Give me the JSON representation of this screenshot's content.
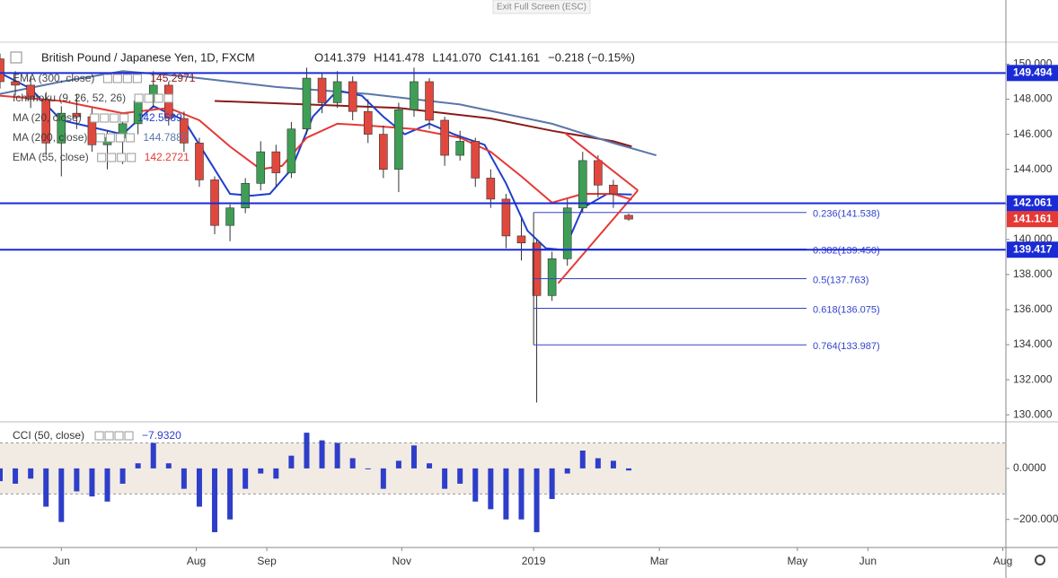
{
  "ui": {
    "exit_button": "Exit Full Screen (ESC)"
  },
  "chart_data": [
    {
      "type": "candlestick",
      "title": "British Pound / Japanese Yen, 1D, FXCM",
      "readout": [
        "O141.379",
        "H141.478",
        "L141.070",
        "C141.161",
        "−0.218 (−0.15%)"
      ],
      "x": [
        0,
        5,
        10,
        15,
        20,
        25,
        30,
        35,
        40,
        45,
        50,
        55,
        60,
        65,
        70,
        75,
        80,
        85,
        90,
        95,
        100,
        105,
        110,
        115,
        120,
        125,
        130,
        135,
        140,
        145,
        150,
        155,
        160,
        165,
        170,
        175,
        180,
        185,
        190,
        195,
        200,
        205
      ],
      "open": [
        150.3,
        149.0,
        148.8,
        148.0,
        145.5,
        147.2,
        147.0,
        145.4,
        145.8,
        146.6,
        147.9,
        148.8,
        146.9,
        145.5,
        143.4,
        140.8,
        141.8,
        143.2,
        145.0,
        143.8,
        146.3,
        149.2,
        147.8,
        149.0,
        147.3,
        146.0,
        144.0,
        147.4,
        149.0,
        146.8,
        144.8,
        145.6,
        143.5,
        142.3,
        140.2,
        139.8,
        136.8,
        138.9,
        141.8,
        144.5,
        143.1,
        141.379
      ],
      "high": [
        150.6,
        149.6,
        149.3,
        148.4,
        147.6,
        148.3,
        147.5,
        146.2,
        147.0,
        148.3,
        149.6,
        149.0,
        147.3,
        145.8,
        143.6,
        142.0,
        143.5,
        145.6,
        145.4,
        146.7,
        149.8,
        149.5,
        149.6,
        149.3,
        148.0,
        146.5,
        147.8,
        149.8,
        149.2,
        147.0,
        146.2,
        145.8,
        144.0,
        142.6,
        141.2,
        140.0,
        139.3,
        142.3,
        145.0,
        144.8,
        143.4,
        141.478
      ],
      "low": [
        148.6,
        148.2,
        147.5,
        144.8,
        143.6,
        146.3,
        145.0,
        144.0,
        144.3,
        146.0,
        147.5,
        146.5,
        145.0,
        143.0,
        140.3,
        139.9,
        141.5,
        142.8,
        143.0,
        143.5,
        146.0,
        147.2,
        147.5,
        146.8,
        145.5,
        143.5,
        142.7,
        147.0,
        146.3,
        144.2,
        144.5,
        143.0,
        141.8,
        139.5,
        138.8,
        130.7,
        136.5,
        138.5,
        141.5,
        142.4,
        141.8,
        141.07
      ],
      "close": [
        149.0,
        148.8,
        148.0,
        145.5,
        147.2,
        147.0,
        145.4,
        145.8,
        146.6,
        147.9,
        148.8,
        146.9,
        145.5,
        143.4,
        140.8,
        141.8,
        143.2,
        145.0,
        143.8,
        146.3,
        149.2,
        147.8,
        149.0,
        147.3,
        146.0,
        144.0,
        147.4,
        149.0,
        146.8,
        144.8,
        145.6,
        143.5,
        142.3,
        140.2,
        139.8,
        136.8,
        138.9,
        141.8,
        144.5,
        143.1,
        142.6,
        141.161
      ],
      "up_color": "#3f9e55",
      "down_color": "#e0483e",
      "xlim": [
        0,
        328
      ],
      "xticks": [
        {
          "value": 20,
          "label": "Jun"
        },
        {
          "value": 64,
          "label": "Aug"
        },
        {
          "value": 87,
          "label": "Sep"
        },
        {
          "value": 131,
          "label": "Nov"
        },
        {
          "value": 174,
          "label": "2019"
        },
        {
          "value": 215,
          "label": "Mar"
        },
        {
          "value": 260,
          "label": "May"
        },
        {
          "value": 283,
          "label": "Jun"
        },
        {
          "value": 327,
          "label": "Aug"
        }
      ],
      "ylim": [
        129.6,
        151.2
      ],
      "yticks": [
        {
          "value": 130,
          "label": "130.000"
        },
        {
          "value": 132,
          "label": "132.000"
        },
        {
          "value": 134,
          "label": "134.000"
        },
        {
          "value": 136,
          "label": "136.000"
        },
        {
          "value": 138,
          "label": "138.000"
        },
        {
          "value": 140,
          "label": "140.000"
        },
        {
          "value": 142,
          "label": "142.000"
        },
        {
          "value": 144,
          "label": "144.000"
        },
        {
          "value": 146,
          "label": "146.000"
        },
        {
          "value": 148,
          "label": "148.000"
        },
        {
          "value": 150,
          "label": "150.000"
        }
      ],
      "lines": [
        {
          "name": "EMA (300, close)",
          "value_label": "145.2971",
          "color": "#8b1a1a",
          "x": [
            70,
            100,
            130,
            160,
            180,
            200,
            206
          ],
          "values": [
            147.9,
            147.7,
            147.5,
            146.9,
            146.2,
            145.6,
            145.3
          ]
        },
        {
          "name": "Ichimoku (9, 26, 52, 26)",
          "color": "#5a76a8",
          "x": [
            0,
            20,
            40,
            60,
            90,
            120,
            150,
            180,
            200,
            214
          ],
          "values": [
            148.3,
            149.0,
            149.6,
            149.3,
            148.7,
            148.3,
            147.7,
            146.6,
            145.5,
            144.8
          ]
        },
        {
          "name": "MA (20, close)",
          "value_label": "142.5589",
          "color": "#1e3fcc",
          "x": [
            0,
            10,
            20,
            30,
            40,
            50,
            60,
            70,
            75,
            82,
            88,
            95,
            102,
            110,
            118,
            125,
            132,
            140,
            148,
            158,
            165,
            172,
            178,
            184,
            190,
            198,
            206
          ],
          "values": [
            149.5,
            148.6,
            146.8,
            146.4,
            146.0,
            147.6,
            146.8,
            144.0,
            142.6,
            142.5,
            142.6,
            144.0,
            147.0,
            148.5,
            148.2,
            147.0,
            146.0,
            146.6,
            146.0,
            145.4,
            143.2,
            140.5,
            139.5,
            139.4,
            141.8,
            142.6,
            142.56
          ]
        },
        {
          "name": "MA (200, close)",
          "value_label": "144.7887",
          "color": "#5a76a8"
        },
        {
          "name": "EMA (55, close)",
          "value_label": "142.2721",
          "color": "#e53935",
          "x": [
            0,
            20,
            40,
            55,
            65,
            75,
            85,
            92,
            100,
            110,
            120,
            135,
            150,
            160,
            170,
            180,
            190,
            200,
            206
          ],
          "values": [
            148.2,
            147.9,
            147.2,
            147.5,
            146.8,
            145.3,
            144.0,
            144.2,
            145.8,
            146.6,
            146.5,
            146.3,
            145.8,
            145.0,
            143.6,
            142.1,
            142.6,
            142.6,
            142.27
          ]
        }
      ],
      "levels": [
        {
          "value": 149.494,
          "label": "149.494"
        },
        {
          "value": 142.061,
          "label": "142.061"
        },
        {
          "value": 139.417,
          "label": "139.417"
        }
      ],
      "level_color": "#1a2bd6",
      "price_label": {
        "value": 141.161,
        "label": "141.161",
        "color": "#e53935"
      },
      "fib_x": [
        174,
        263
      ],
      "fib_levels": [
        {
          "value": 141.538,
          "label": "0.236(141.538)"
        },
        {
          "value": 139.45,
          "label": "0.382(139.450)"
        },
        {
          "value": 137.763,
          "label": "0.5(137.763)"
        },
        {
          "value": 136.075,
          "label": "0.618(136.075)"
        },
        {
          "value": 133.987,
          "label": "0.764(133.987)"
        }
      ],
      "trendlines": [
        {
          "x": [
            184,
            208
          ],
          "y": [
            146.1,
            142.8
          ]
        },
        {
          "x": [
            182,
            208
          ],
          "y": [
            137.5,
            142.8
          ]
        }
      ],
      "trend_color": "#e53935"
    },
    {
      "type": "bar",
      "title": "CCI (50, close)",
      "value_label": "−7.9320",
      "x": [
        0,
        5,
        10,
        15,
        20,
        25,
        30,
        35,
        40,
        45,
        50,
        55,
        60,
        65,
        70,
        75,
        80,
        85,
        90,
        95,
        100,
        105,
        110,
        115,
        120,
        125,
        130,
        135,
        140,
        145,
        150,
        155,
        160,
        165,
        170,
        175,
        180,
        185,
        190,
        195,
        200,
        205
      ],
      "values": [
        -50,
        -60,
        -40,
        -150,
        -210,
        -90,
        -110,
        -130,
        -60,
        20,
        100,
        20,
        -80,
        -150,
        -250,
        -200,
        -80,
        -20,
        -40,
        50,
        140,
        110,
        100,
        40,
        0,
        -80,
        30,
        90,
        20,
        -80,
        -60,
        -130,
        -160,
        -200,
        -200,
        -250,
        -120,
        -20,
        70,
        40,
        30,
        -7.932
      ],
      "color": "#2e3ec9",
      "ylim": [
        -310,
        165
      ],
      "yticks": [
        {
          "value": 0,
          "label": "0.0000"
        },
        {
          "value": -200,
          "label": "−200.0000"
        }
      ],
      "bands": [
        100,
        -100
      ],
      "band_color": "#f2ebe4"
    }
  ]
}
